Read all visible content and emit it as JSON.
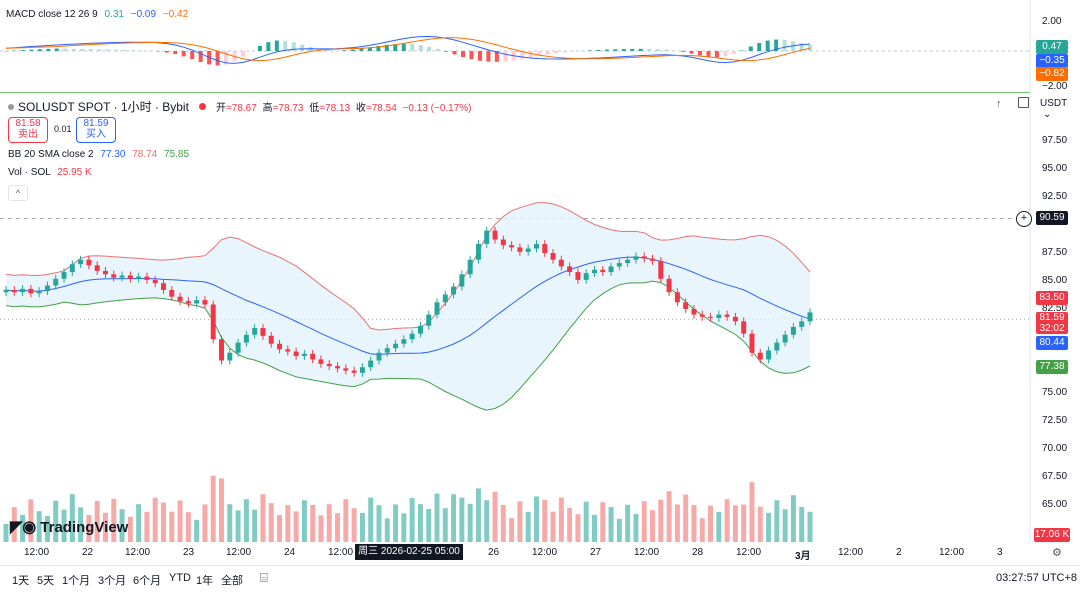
{
  "macd": {
    "title": "MACD close 12 26 9",
    "v1": "0.31",
    "v2": "−0.09",
    "v3": "−0.42",
    "axis": [
      "2.00",
      "−2.00"
    ],
    "tags": [
      {
        "label": "0.47",
        "color": "#26a69a"
      },
      {
        "label": "−0.35",
        "color": "#2962ff"
      },
      {
        "label": "−0.82",
        "color": "#ff6d00"
      }
    ]
  },
  "header": {
    "symbol": "SOLUSDT SPOT · 1小时 · Bybit",
    "open_label": "开",
    "open": "=78.67",
    "high_label": "高",
    "high": "=78.73",
    "low_label": "低",
    "low": "=78.13",
    "close_label": "收",
    "close": "=78.54",
    "change": "−0.13 (−0.17%)",
    "currency": "USDT"
  },
  "trade": {
    "sell_price": "81.58",
    "sell_label": "卖出",
    "spread": "0.01",
    "buy_price": "81.59",
    "buy_label": "买入"
  },
  "bb": {
    "label": "BB 20 SMA close 2",
    "v1": "77.30",
    "v2": "78.74",
    "v3": "75.85"
  },
  "vol": {
    "label": "Vol · SOL",
    "value": "25.95 K"
  },
  "price_axis": [
    "97.50",
    "95.00",
    "92.50",
    "87.50",
    "85.00",
    "82.50",
    "75.00",
    "72.50",
    "70.00",
    "67.50",
    "65.00"
  ],
  "price_tags": {
    "crosshair": "90.59",
    "upper": "83.50",
    "last": "81.59",
    "countdown": "32:02",
    "middle": "80.44",
    "lower": "77.38",
    "volume": "17.06 K"
  },
  "time_axis": [
    "12:00",
    "22",
    "12:00",
    "23",
    "12:00",
    "24",
    "12:00",
    "26",
    "12:00",
    "27",
    "12:00",
    "28",
    "12:00",
    "3月",
    "12:00",
    "2",
    "12:00",
    "3"
  ],
  "crosshair_time": "周三 2026-02-25  05:00",
  "bottom": {
    "ranges": [
      "1天",
      "5天",
      "1个月",
      "3个月",
      "6个月",
      "YTD",
      "1年",
      "全部"
    ],
    "clock": "03:27:57 UTC+8"
  },
  "logo": "TradingView",
  "colors": {
    "up": "#26a69a",
    "down": "#f23645",
    "bb_upper": "#e57373",
    "bb_lower": "#43a047",
    "bb_mid": "#2962ff",
    "fill": "#e3f2fd"
  },
  "chart_data": {
    "type": "candlestick",
    "timeframe": "1h",
    "closes": [
      84.2,
      84.0,
      84.3,
      83.9,
      84.1,
      84.6,
      85.2,
      85.8,
      86.5,
      86.9,
      86.4,
      85.9,
      85.6,
      85.3,
      85.5,
      85.2,
      85.4,
      85.1,
      84.8,
      84.2,
      83.6,
      83.2,
      83.0,
      83.3,
      82.9,
      79.8,
      77.9,
      78.6,
      79.5,
      80.2,
      80.8,
      80.1,
      79.4,
      78.9,
      78.7,
      78.3,
      78.5,
      78.0,
      77.6,
      77.4,
      77.2,
      77.0,
      76.8,
      77.3,
      77.9,
      78.6,
      79.0,
      79.4,
      79.8,
      80.3,
      81.0,
      82.0,
      83.1,
      83.8,
      84.5,
      85.6,
      86.9,
      88.3,
      89.5,
      88.7,
      88.2,
      88.0,
      87.6,
      87.9,
      88.3,
      87.5,
      86.9,
      86.3,
      85.8,
      85.1,
      85.7,
      86.0,
      85.8,
      86.3,
      86.6,
      86.9,
      87.2,
      87.0,
      86.8,
      85.2,
      84.0,
      83.1,
      82.5,
      82.0,
      81.8,
      81.7,
      82.0,
      81.8,
      81.4,
      80.3,
      78.6,
      78.0,
      78.8,
      79.5,
      80.2,
      80.9,
      81.4,
      82.2
    ],
    "bollinger": {
      "period": 20,
      "stddev": 2,
      "upper": 83.5,
      "middle": 80.44,
      "lower": 77.38
    },
    "volume_unit": "K"
  }
}
